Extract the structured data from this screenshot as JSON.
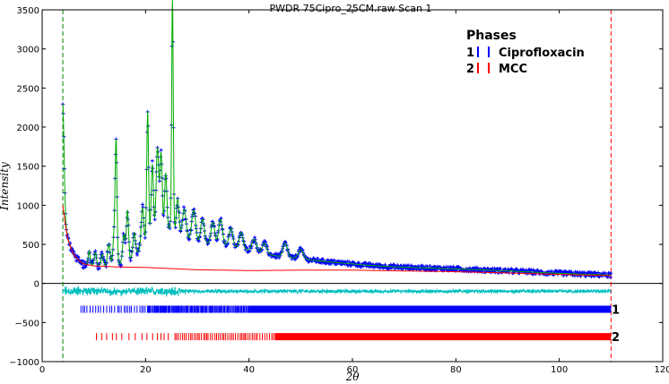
{
  "chart_data": {
    "type": "line",
    "title": "PWDR 75Cipro_25CM.raw Scan 1",
    "xlabel": "2θ",
    "ylabel": "Intensity",
    "xlim": [
      0,
      120
    ],
    "ylim": [
      -1000,
      3500
    ],
    "xticks": [
      "0",
      "20",
      "40",
      "60",
      "80",
      "100",
      "120"
    ],
    "yticks": [
      "−1000",
      "−500",
      "0",
      "500",
      "1000",
      "1500",
      "2000",
      "2500",
      "3000",
      "3500"
    ],
    "xtick_values": [
      0,
      20,
      40,
      60,
      80,
      100,
      120
    ],
    "ytick_values": [
      -1000,
      -500,
      0,
      500,
      1000,
      1500,
      2000,
      2500,
      3000,
      3500
    ],
    "range_limits": [
      4,
      110
    ],
    "legend": {
      "title": "Phases",
      "placement": "top-right",
      "entries": [
        {
          "number": "1",
          "name": "Ciprofloxacin",
          "color": "#0000ff"
        },
        {
          "number": "2",
          "name": "MCC",
          "color": "#ff0000"
        }
      ]
    },
    "phase_labels": [
      "1",
      "2"
    ],
    "colors": {
      "observed": "#0000ff",
      "calculated": "#00aa00",
      "background": "#ff0000",
      "difference": "#00bfbf",
      "low_limit": "#008000",
      "high_limit": "#ff0000"
    },
    "peaks": [
      {
        "x": 4.0,
        "y": 1300,
        "w": 0.35
      },
      {
        "x": 9.1,
        "y": 180,
        "w": 0.25
      },
      {
        "x": 10.3,
        "y": 170,
        "w": 0.3
      },
      {
        "x": 11.6,
        "y": 150,
        "w": 0.3
      },
      {
        "x": 12.9,
        "y": 280,
        "w": 0.35
      },
      {
        "x": 13.9,
        "y": 380,
        "w": 0.3
      },
      {
        "x": 14.3,
        "y": 1550,
        "w": 0.25
      },
      {
        "x": 15.8,
        "y": 360,
        "w": 0.35
      },
      {
        "x": 16.5,
        "y": 650,
        "w": 0.3
      },
      {
        "x": 17.8,
        "y": 300,
        "w": 0.35
      },
      {
        "x": 19.4,
        "y": 500,
        "w": 0.35
      },
      {
        "x": 20.4,
        "y": 1650,
        "w": 0.25
      },
      {
        "x": 21.3,
        "y": 900,
        "w": 0.3
      },
      {
        "x": 22.3,
        "y": 1050,
        "w": 0.35
      },
      {
        "x": 23.0,
        "y": 950,
        "w": 0.3
      },
      {
        "x": 23.9,
        "y": 700,
        "w": 0.3
      },
      {
        "x": 25.2,
        "y": 2950,
        "w": 0.22
      },
      {
        "x": 26.2,
        "y": 450,
        "w": 0.35
      },
      {
        "x": 27.5,
        "y": 380,
        "w": 0.5
      },
      {
        "x": 29.3,
        "y": 420,
        "w": 0.55
      },
      {
        "x": 31.0,
        "y": 320,
        "w": 0.5
      },
      {
        "x": 33.0,
        "y": 280,
        "w": 0.5
      },
      {
        "x": 34.5,
        "y": 320,
        "w": 0.5
      },
      {
        "x": 36.5,
        "y": 230,
        "w": 0.5
      },
      {
        "x": 38.5,
        "y": 200,
        "w": 0.5
      },
      {
        "x": 41.0,
        "y": 160,
        "w": 0.6
      },
      {
        "x": 43.0,
        "y": 140,
        "w": 0.6
      },
      {
        "x": 47.0,
        "y": 180,
        "w": 0.6
      },
      {
        "x": 50.0,
        "y": 120,
        "w": 0.7
      }
    ],
    "background_curve": [
      [
        4,
        1000
      ],
      [
        4.5,
        750
      ],
      [
        5,
        560
      ],
      [
        6,
        380
      ],
      [
        7,
        300
      ],
      [
        8,
        250
      ],
      [
        10,
        225
      ],
      [
        15,
        210
      ],
      [
        20,
        205
      ],
      [
        25,
        190
      ],
      [
        30,
        175
      ],
      [
        40,
        165
      ],
      [
        50,
        170
      ],
      [
        60,
        170
      ],
      [
        70,
        160
      ],
      [
        80,
        150
      ],
      [
        90,
        135
      ],
      [
        100,
        115
      ],
      [
        110,
        100
      ]
    ],
    "phase1_ticks": {
      "start": 7.5,
      "end": 110,
      "y": -330,
      "color": "#0000ff"
    },
    "phase2_ticks": {
      "start": 10.5,
      "end": 110,
      "y": -680,
      "color": "#ff0000"
    }
  }
}
